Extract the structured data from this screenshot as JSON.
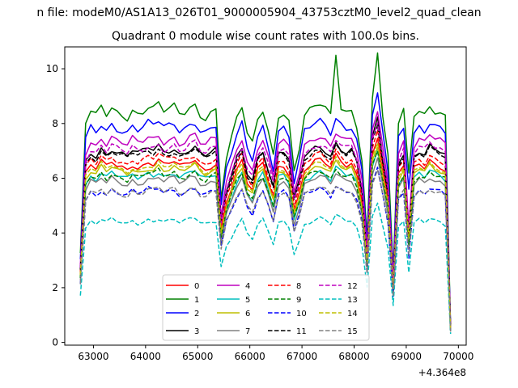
{
  "figure": {
    "suptitle": "n file: modeM0/AS1A13_026T01_9000005904_43753cztM0_level2_quad_clean",
    "offset_label": "+4.364e8"
  },
  "chart_data": {
    "type": "line",
    "title": "Quadrant 0 module wise count rates with 100.0s bins.",
    "xlabel": "",
    "ylabel": "",
    "x_offset": 436400000,
    "xlim": [
      62450,
      70150
    ],
    "ylim": [
      -0.1,
      10.8
    ],
    "xticks": [
      63000,
      64000,
      65000,
      66000,
      67000,
      68000,
      69000,
      70000
    ],
    "xtick_labels": [
      "63000",
      "64000",
      "65000",
      "66000",
      "67000",
      "68000",
      "69000",
      "70000"
    ],
    "yticks": [
      0,
      2,
      4,
      6,
      8,
      10
    ],
    "ytick_labels": [
      "0",
      "2",
      "4",
      "6",
      "8",
      "10"
    ],
    "grid": false,
    "legend": {
      "placement": "lower-center",
      "columns": 4
    },
    "x_start": 62750,
    "x_step": 100,
    "n_points": 72,
    "profile_notes": "x values: 62750 + 100*i, i = 0..71",
    "series": [
      {
        "name": "0",
        "color": "#ff0000",
        "dash": "solid",
        "level": 6.6
      },
      {
        "name": "1",
        "color": "#008000",
        "dash": "solid",
        "level": 8.6
      },
      {
        "name": "2",
        "color": "#0000ff",
        "dash": "solid",
        "level": 8.0
      },
      {
        "name": "3",
        "color": "#000000",
        "dash": "solid",
        "level": 7.1
      },
      {
        "name": "4",
        "color": "#bf00bf",
        "dash": "solid",
        "level": 7.5
      },
      {
        "name": "5",
        "color": "#00bfbf",
        "dash": "solid",
        "level": 6.2
      },
      {
        "name": "6",
        "color": "#bfbf00",
        "dash": "solid",
        "level": 6.4
      },
      {
        "name": "7",
        "color": "#808080",
        "dash": "solid",
        "level": 6.0
      },
      {
        "name": "8",
        "color": "#ff0000",
        "dash": "dashed",
        "level": 6.8
      },
      {
        "name": "9",
        "color": "#008000",
        "dash": "dashed",
        "level": 6.2
      },
      {
        "name": "10",
        "color": "#0000ff",
        "dash": "dashed",
        "level": 5.6
      },
      {
        "name": "11",
        "color": "#000000",
        "dash": "dashed",
        "level": 7.0
      },
      {
        "name": "12",
        "color": "#bf00bf",
        "dash": "dashed",
        "level": 7.2
      },
      {
        "name": "13",
        "color": "#00bfbf",
        "dash": "dashed",
        "level": 4.5
      },
      {
        "name": "14",
        "color": "#bfbf00",
        "dash": "dashed",
        "level": 6.5
      },
      {
        "name": "15",
        "color": "#808080",
        "dash": "dashed",
        "level": 5.6
      }
    ],
    "shape": [
      0.38,
      0.93,
      0.98,
      0.96,
      1.0,
      0.97,
      1.0,
      0.98,
      0.97,
      0.96,
      0.99,
      0.97,
      0.98,
      1.0,
      0.99,
      1.01,
      0.98,
      0.99,
      1.0,
      0.97,
      0.98,
      1.0,
      1.01,
      0.97,
      0.96,
      0.98,
      0.99,
      0.62,
      0.78,
      0.86,
      0.95,
      1.0,
      0.88,
      0.84,
      0.95,
      0.99,
      0.9,
      0.8,
      0.97,
      0.98,
      0.94,
      0.73,
      0.83,
      0.96,
      0.98,
      1.0,
      1.01,
      0.99,
      0.96,
      1.03,
      1.0,
      0.98,
      0.99,
      0.93,
      0.78,
      0.45,
      1.04,
      1.13,
      0.95,
      0.78,
      0.3,
      0.93,
      0.98,
      0.57,
      0.96,
      0.99,
      0.97,
      1.01,
      0.99,
      0.98,
      0.96,
      0.07
    ],
    "bumps": {
      "1": {
        "49": 1.22,
        "57": 1.23,
        "63": 0.72,
        "64": 0.96
      },
      "2": {
        "57": 1.14,
        "63": 0.7
      },
      "3": {
        "57": 1.16
      }
    }
  }
}
